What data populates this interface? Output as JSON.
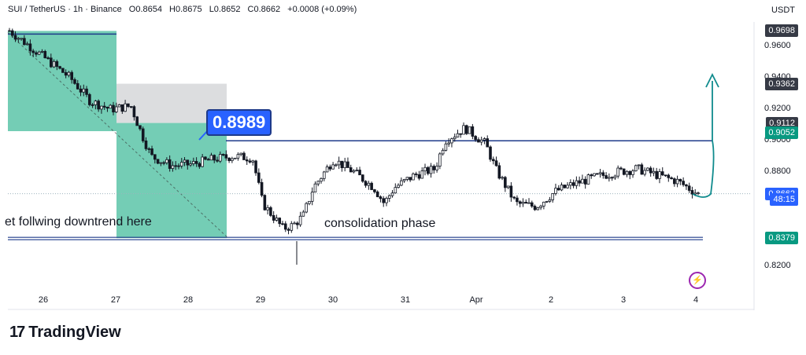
{
  "header": {
    "symbol": "SUI / TetherUS · 1h · Binance",
    "open": "O0.8654",
    "high": "H0.8675",
    "low": "L0.8652",
    "close": "C0.8662",
    "change": "+0.0008 (+0.09%)",
    "currency": "USDT"
  },
  "annotations": {
    "callout_price": "0.8989",
    "left_text": "et follwing downtrend here",
    "mid_text": "consolidation phase"
  },
  "price_axis": {
    "ticks": [
      "0.9600",
      "0.9400",
      "0.9200",
      "0.9000",
      "0.8800",
      "0.8200"
    ],
    "tick_values": [
      0.96,
      0.94,
      0.92,
      0.9,
      0.88,
      0.82
    ],
    "labels": [
      {
        "text": "0.9698",
        "bg": "#363a45",
        "fg": "#ffffff",
        "value": 0.9698
      },
      {
        "text": "0.9362",
        "bg": "#363a45",
        "fg": "#ffffff",
        "value": 0.9362
      },
      {
        "text": "0.9112",
        "bg": "#363a45",
        "fg": "#ffffff",
        "value": 0.9112
      },
      {
        "text": "0.9052",
        "bg": "#089981",
        "fg": "#ffffff",
        "value": 0.9052
      },
      {
        "text": "0.8662",
        "bg": "#2962ff",
        "fg": "#ffffff",
        "value": 0.8662
      },
      {
        "text": "48:15",
        "bg": "#2962ff",
        "fg": "#ffffff",
        "value": 0.8625
      },
      {
        "text": "0.8379",
        "bg": "#089981",
        "fg": "#ffffff",
        "value": 0.8379
      }
    ]
  },
  "time_axis": [
    "26",
    "27",
    "28",
    "29",
    "30",
    "31",
    "Apr",
    "2",
    "3",
    "4"
  ],
  "brand": {
    "name": "TradingView",
    "mark": "17"
  },
  "colors": {
    "up": "#131722",
    "down": "#131722",
    "zone": "#5cc4a8",
    "grey": "#d8d9dc",
    "line": "#1e3a8a",
    "arrow": "#0f8b8d"
  },
  "chart_data": {
    "type": "candlestick",
    "title": "SUI / TetherUS · 1h · Binance",
    "ylabel": "USDT",
    "ylim": [
      0.81,
      0.98
    ],
    "x_categories": [
      "26",
      "27",
      "28",
      "29",
      "30",
      "31",
      "Apr",
      "2",
      "3",
      "4"
    ],
    "levels": {
      "resistance": 0.8989,
      "support": 0.8379
    },
    "path": [
      [
        0,
        0.97
      ],
      [
        3,
        0.955
      ],
      [
        6,
        0.94
      ],
      [
        8,
        0.925
      ],
      [
        10,
        0.92
      ],
      [
        12,
        0.922
      ],
      [
        13,
        0.905
      ],
      [
        14,
        0.89
      ],
      [
        16,
        0.884
      ],
      [
        18,
        0.885
      ],
      [
        20,
        0.888
      ],
      [
        22,
        0.89
      ],
      [
        24,
        0.889
      ],
      [
        25,
        0.86
      ],
      [
        26,
        0.852
      ],
      [
        27,
        0.844
      ],
      [
        28,
        0.846
      ],
      [
        29,
        0.852
      ],
      [
        30,
        0.87
      ],
      [
        32,
        0.888
      ],
      [
        34,
        0.88
      ],
      [
        35,
        0.875
      ],
      [
        36,
        0.87
      ],
      [
        37,
        0.86
      ],
      [
        38,
        0.87
      ],
      [
        40,
        0.878
      ],
      [
        42,
        0.882
      ],
      [
        43,
        0.9
      ],
      [
        45,
        0.908
      ],
      [
        47,
        0.898
      ],
      [
        48,
        0.882
      ],
      [
        50,
        0.86
      ],
      [
        52,
        0.858
      ],
      [
        54,
        0.868
      ],
      [
        56,
        0.873
      ],
      [
        58,
        0.877
      ],
      [
        60,
        0.88
      ],
      [
        62,
        0.882
      ],
      [
        64,
        0.878
      ],
      [
        66,
        0.874
      ],
      [
        68,
        0.866
      ]
    ]
  }
}
